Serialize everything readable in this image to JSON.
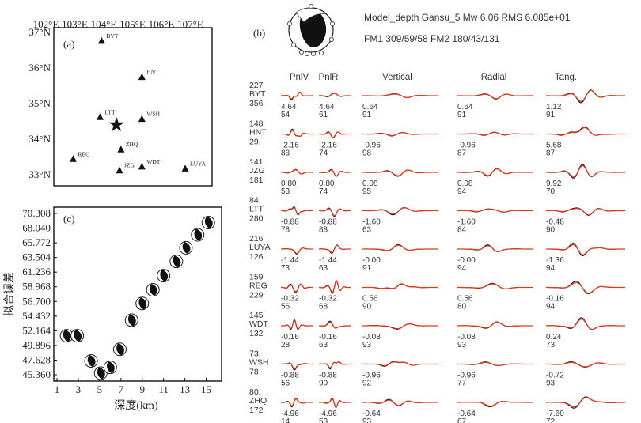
{
  "panel_a": {
    "label": "(a)",
    "lon_ticks": [
      "102°E",
      "103°E",
      "104°E",
      "105°E",
      "106°E",
      "107°E"
    ],
    "lat_ticks": [
      "37°N",
      "36°N",
      "35°N",
      "34°N",
      "33°N"
    ],
    "epicenter": {
      "lon": 104.1,
      "lat": 34.5
    },
    "stations": [
      {
        "code": "BYT",
        "lon": 103.6,
        "lat": 36.7
      },
      {
        "code": "HNT",
        "lon": 104.95,
        "lat": 35.75
      },
      {
        "code": "LTT",
        "lon": 103.55,
        "lat": 34.7
      },
      {
        "code": "WSH",
        "lon": 104.95,
        "lat": 34.65
      },
      {
        "code": "ZHQ",
        "lon": 104.25,
        "lat": 33.85
      },
      {
        "code": "REG",
        "lon": 102.65,
        "lat": 33.6
      },
      {
        "code": "JZG",
        "lon": 104.2,
        "lat": 33.3
      },
      {
        "code": "WDT",
        "lon": 104.95,
        "lat": 33.4
      },
      {
        "code": "LUYA",
        "lon": 106.4,
        "lat": 33.35
      }
    ]
  },
  "panel_b": {
    "label": "(b)",
    "line1": "Model_depth Gansu_5 Mw 6.06 RMS 6.085e+01",
    "line2": "FM1 309/59/58   FM2 180/43/131",
    "columns": [
      "PnlV",
      "PnlR",
      "Vertical",
      "Radial",
      "Tang."
    ],
    "rows": [
      {
        "station": "BYT",
        "dist": "227",
        "az": "356",
        "shifts": [
          "4.64",
          "4.64",
          "0.64",
          "0.64",
          "1.12"
        ],
        "cc": [
          "54",
          "61",
          "91",
          "91",
          "91"
        ]
      },
      {
        "station": "HNT",
        "dist": "148",
        "az": "29.",
        "shifts": [
          "-2.16",
          "-2.16",
          "-0.96",
          "-0.96",
          "5.68"
        ],
        "cc": [
          "83",
          "74",
          "98",
          "87",
          "87"
        ]
      },
      {
        "station": "JZG",
        "dist": "141",
        "az": "181",
        "shifts": [
          "0.80",
          "0.80",
          "0.08",
          "0.08",
          "9.92"
        ],
        "cc": [
          "53",
          "74",
          "95",
          "94",
          "70"
        ]
      },
      {
        "station": "LTT",
        "dist": "84.",
        "az": "280",
        "shifts": [
          "-0.88",
          "-0.88",
          "-1.60",
          "-1.60",
          "-0.48"
        ],
        "cc": [
          "78",
          "88",
          "63",
          "84",
          "90"
        ]
      },
      {
        "station": "LUYA",
        "dist": "216",
        "az": "126",
        "shifts": [
          "-1.44",
          "-1.44",
          "-0.00",
          "-0.00",
          "-1.36"
        ],
        "cc": [
          "73",
          "63",
          "91",
          "94",
          "94"
        ]
      },
      {
        "station": "REG",
        "dist": "159",
        "az": "229",
        "shifts": [
          "-0.32",
          "-0.32",
          "0.56",
          "0.56",
          "-0.16"
        ],
        "cc": [
          "56",
          "68",
          "90",
          "80",
          "94"
        ]
      },
      {
        "station": "WDT",
        "dist": "145",
        "az": "132",
        "shifts": [
          "-0.16",
          "-0.16",
          "-0.08",
          "-0.08",
          "0.24"
        ],
        "cc": [
          "28",
          "63",
          "93",
          "93",
          "73"
        ]
      },
      {
        "station": "WSH",
        "dist": "73.",
        "az": "78",
        "shifts": [
          "-0.88",
          "-0.88",
          "-0.96",
          "-0.96",
          "-0.72"
        ],
        "cc": [
          "56",
          "90",
          "92",
          "77",
          "93"
        ]
      },
      {
        "station": "ZHQ",
        "dist": "80.",
        "az": "172",
        "shifts": [
          "-4.96",
          "-4.96",
          "-0.64",
          "-0.64",
          "-7.60"
        ],
        "cc": [
          "14",
          "53",
          "93",
          "87",
          "72"
        ]
      }
    ]
  },
  "chart_data": {
    "type": "scatter",
    "label": "(c)",
    "xlabel": "深度(km)",
    "ylabel": "拟合误差",
    "xticks": [
      "1",
      "3",
      "5",
      "7",
      "9",
      "11",
      "13",
      "15"
    ],
    "yticks": [
      "70.308",
      "68.040",
      "65.772",
      "63.504",
      "61.236",
      "58.968",
      "56.700",
      "54.432",
      "52.164",
      "49.896",
      "47.628",
      "45.360"
    ],
    "xlim": [
      1,
      16
    ],
    "ylim": [
      45.36,
      70.308
    ],
    "points": [
      {
        "x": 1.9,
        "y": 51.4
      },
      {
        "x": 2.9,
        "y": 51.4
      },
      {
        "x": 4.2,
        "y": 47.5
      },
      {
        "x": 5.1,
        "y": 45.6
      },
      {
        "x": 6.0,
        "y": 46.5
      },
      {
        "x": 6.9,
        "y": 49.3
      },
      {
        "x": 8.0,
        "y": 53.8
      },
      {
        "x": 9.0,
        "y": 56.4
      },
      {
        "x": 10.0,
        "y": 58.5
      },
      {
        "x": 11.0,
        "y": 60.7
      },
      {
        "x": 12.2,
        "y": 62.9
      },
      {
        "x": 13.1,
        "y": 65.0
      },
      {
        "x": 14.2,
        "y": 67.0
      },
      {
        "x": 15.2,
        "y": 68.9
      }
    ]
  }
}
